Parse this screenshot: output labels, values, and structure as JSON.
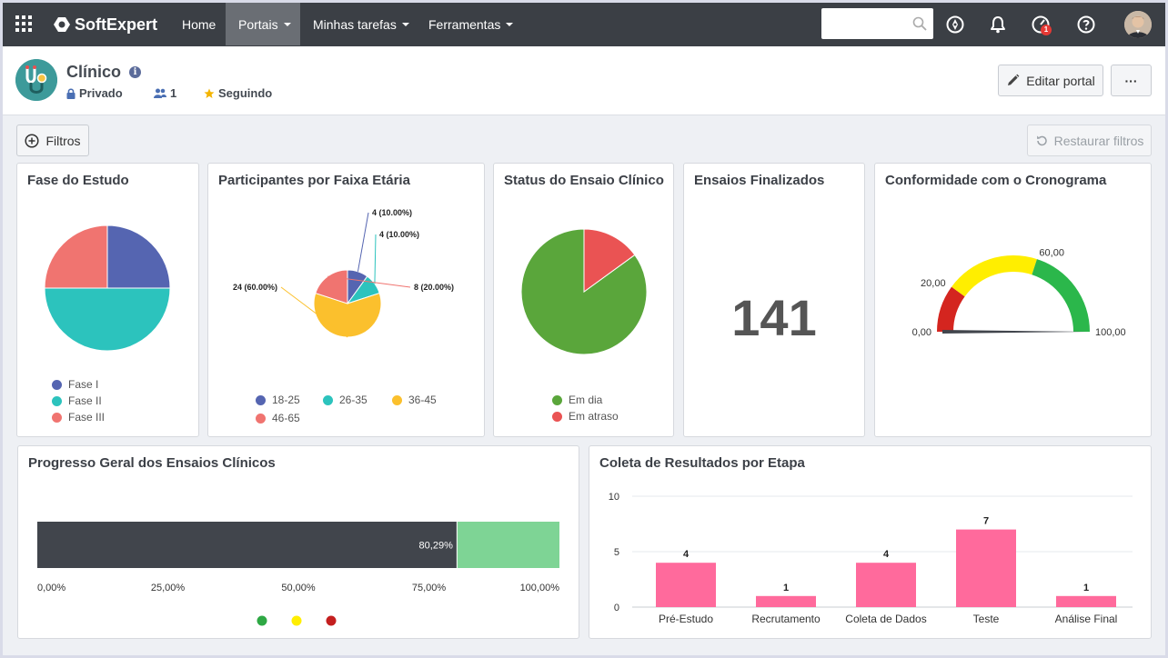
{
  "topbar": {
    "brand": "SoftExpert",
    "nav": [
      {
        "label": "Home"
      },
      {
        "label": "Portais"
      },
      {
        "label": "Minhas tarefas"
      },
      {
        "label": "Ferramentas"
      }
    ],
    "search_placeholder": "",
    "notification_badge": "1"
  },
  "header": {
    "title": "Clínico",
    "privacy": "Privado",
    "members": "1",
    "following": "Seguindo",
    "edit_button": "Editar portal",
    "more_button": "···"
  },
  "toolbar": {
    "filters": "Filtros",
    "reset_filters": "Restaurar filtros"
  },
  "widgets": {
    "phase": {
      "title": "Fase do Estudo",
      "legend": [
        "Fase I",
        "Fase II",
        "Fase III"
      ],
      "colors": [
        "#5565b1",
        "#2cc3bd",
        "#f07470"
      ]
    },
    "age": {
      "title": "Participantes por Faixa Etária",
      "legend": [
        "18-25",
        "26-35",
        "36-45",
        "46-65"
      ],
      "colors": [
        "#5565b1",
        "#2cc3bd",
        "#fbc02d",
        "#f07470"
      ],
      "labels": [
        "4 (10.00%)",
        "4 (10.00%)",
        "24 (60.00%)",
        "8 (20.00%)"
      ]
    },
    "status": {
      "title": "Status do Ensaio Clínico",
      "legend": [
        "Em dia",
        "Em atraso"
      ],
      "colors": [
        "#5aa63b",
        "#ea5353"
      ]
    },
    "finished": {
      "title": "Ensaios Finalizados",
      "value": "141"
    },
    "schedule": {
      "title": "Conformidade com o Cronograma",
      "ticks": [
        "0,00",
        "20,00",
        "60,00",
        "100,00"
      ],
      "band_colors": [
        "#d4251f",
        "#ffee00",
        "#2bb74b"
      ],
      "value": 100
    },
    "progress": {
      "title": "Progresso Geral dos Ensaios Clínicos",
      "value_label": "80,29%",
      "ticks": [
        "0,00%",
        "25,00%",
        "50,00%",
        "75,00%",
        "100,00%"
      ],
      "bar_color": "#41454c",
      "rest_color": "#7ed495",
      "legend_colors": [
        "#2ea844",
        "#ffee00",
        "#c41f1f"
      ]
    },
    "results": {
      "title": "Coleta de Resultados por Etapa"
    }
  },
  "chart_data": [
    {
      "type": "pie",
      "title": "Fase do Estudo",
      "categories": [
        "Fase I",
        "Fase II",
        "Fase III"
      ],
      "values": [
        25,
        50,
        25
      ]
    },
    {
      "type": "pie",
      "title": "Participantes por Faixa Etária",
      "categories": [
        "18-25",
        "26-35",
        "36-45",
        "46-65"
      ],
      "values": [
        4,
        4,
        24,
        8
      ]
    },
    {
      "type": "pie",
      "title": "Status do Ensaio Clínico",
      "categories": [
        "Em dia",
        "Em atraso"
      ],
      "values": [
        85,
        15
      ]
    },
    {
      "type": "bar",
      "title": "Coleta de Resultados por Etapa",
      "categories": [
        "Pré-Estudo",
        "Recrutamento",
        "Coleta de Dados",
        "Teste",
        "Análise Final"
      ],
      "values": [
        4,
        1,
        4,
        7,
        1
      ],
      "yticks": [
        "10",
        "5",
        "0"
      ],
      "ylim": [
        0,
        10
      ],
      "color": "#ff6a9c"
    }
  ]
}
